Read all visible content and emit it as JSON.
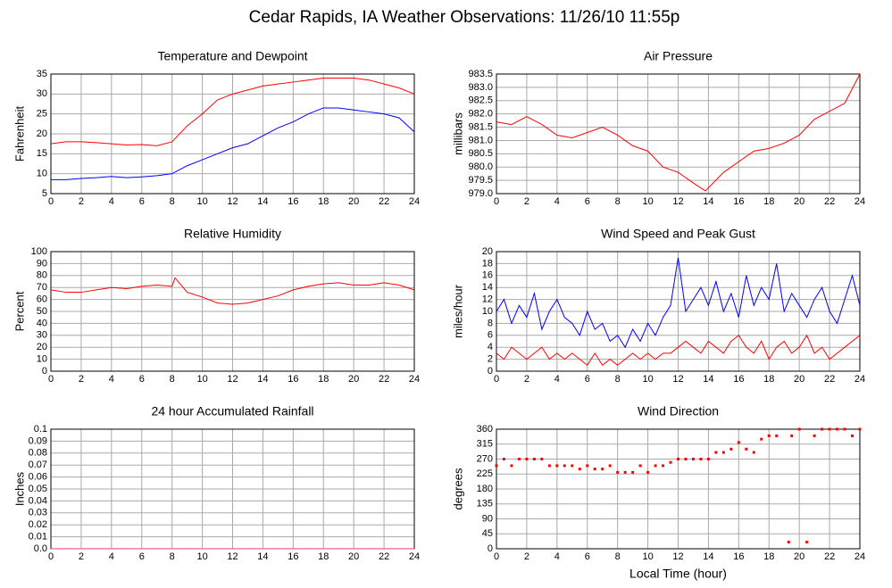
{
  "title": "Cedar Rapids, IA Weather Observations: 11/26/10 11:55p",
  "chart_data": [
    {
      "type": "line",
      "title": "Temperature and Dewpoint",
      "ylabel": "Fahrenheit",
      "xlim": [
        0,
        24
      ],
      "xticks": [
        0,
        2,
        4,
        6,
        8,
        10,
        12,
        14,
        16,
        18,
        20,
        22,
        24
      ],
      "ylim": [
        5,
        35
      ],
      "yticks": [
        5,
        10,
        15,
        20,
        25,
        30,
        35
      ],
      "grid": true,
      "x": [
        0,
        1,
        2,
        3,
        4,
        5,
        6,
        7,
        8,
        9,
        10,
        11,
        12,
        13,
        14,
        15,
        16,
        17,
        18,
        19,
        20,
        21,
        22,
        23,
        24
      ],
      "series": [
        {
          "color": "#ff0000",
          "values": [
            17.5,
            18,
            18,
            17.8,
            17.5,
            17.2,
            17.3,
            17,
            18,
            22,
            25,
            28.5,
            30,
            31,
            32,
            32.5,
            33,
            33.5,
            34,
            34,
            34,
            33.5,
            32.5,
            31.5,
            30
          ]
        },
        {
          "color": "#0000ff",
          "values": [
            8.5,
            8.5,
            8.8,
            9,
            9.3,
            9,
            9.2,
            9.5,
            10,
            12,
            13.5,
            15,
            16.5,
            17.5,
            19.5,
            21.5,
            23,
            25,
            26.5,
            26.5,
            26,
            25.5,
            25,
            24,
            20.5
          ]
        }
      ]
    },
    {
      "type": "line",
      "title": "Air Pressure",
      "ylabel": "millibars",
      "xlim": [
        0,
        24
      ],
      "xticks": [
        0,
        2,
        4,
        6,
        8,
        10,
        12,
        14,
        16,
        18,
        20,
        22,
        24
      ],
      "ylim": [
        979,
        983.5
      ],
      "yticks": [
        {
          "value": 979,
          "label": "979.0"
        },
        979.5,
        {
          "value": 980,
          "label": "980.0"
        },
        980.5,
        {
          "value": 981,
          "label": "981.0"
        },
        981.5,
        {
          "value": 982,
          "label": "982.0"
        },
        982.5,
        {
          "value": 983,
          "label": "983.0"
        },
        983.5
      ],
      "grid": true,
      "x": [
        0,
        1,
        2,
        3,
        4,
        5,
        6,
        7,
        8,
        9,
        10,
        11,
        12,
        13,
        13.8,
        15,
        16,
        17,
        18,
        19,
        20,
        21,
        22,
        23,
        24
      ],
      "series": [
        {
          "color": "#ff0000",
          "values": [
            981.7,
            981.6,
            981.9,
            981.6,
            981.2,
            981.1,
            981.3,
            981.5,
            981.2,
            980.8,
            980.6,
            980,
            979.8,
            979.4,
            979.1,
            979.8,
            980.2,
            980.6,
            980.7,
            980.9,
            981.2,
            981.8,
            982.1,
            982.4,
            983.5
          ]
        }
      ]
    },
    {
      "type": "line",
      "title": "Relative Humidity",
      "ylabel": "Percent",
      "xlim": [
        0,
        24
      ],
      "xticks": [
        0,
        2,
        4,
        6,
        8,
        10,
        12,
        14,
        16,
        18,
        20,
        22,
        24
      ],
      "ylim": [
        0,
        100
      ],
      "yticks": [
        0,
        10,
        20,
        30,
        40,
        50,
        60,
        70,
        80,
        90,
        100
      ],
      "grid": true,
      "x": [
        0,
        1,
        2,
        3,
        4,
        5,
        6,
        7,
        8,
        8.2,
        9,
        10,
        11,
        12,
        13,
        14,
        15,
        16,
        17,
        18,
        19,
        20,
        21,
        22,
        23,
        24
      ],
      "series": [
        {
          "color": "#ff0000",
          "values": [
            68,
            66,
            66,
            68,
            70,
            69,
            71,
            72,
            71,
            78,
            66,
            62,
            57,
            56,
            57,
            60,
            63,
            68,
            71,
            73,
            74,
            72,
            72,
            74,
            72,
            68
          ]
        }
      ]
    },
    {
      "type": "line",
      "title": "Wind Speed and Peak Gust",
      "ylabel": "miles/hour",
      "xlim": [
        0,
        24
      ],
      "xticks": [
        0,
        2,
        4,
        6,
        8,
        10,
        12,
        14,
        16,
        18,
        20,
        22,
        24
      ],
      "ylim": [
        0,
        20
      ],
      "yticks": [
        0,
        2,
        4,
        6,
        8,
        10,
        12,
        14,
        16,
        18,
        20
      ],
      "grid": true,
      "x": [
        0,
        0.5,
        1,
        1.5,
        2,
        2.5,
        3,
        3.5,
        4,
        4.5,
        5,
        5.5,
        6,
        6.5,
        7,
        7.5,
        8,
        8.5,
        9,
        9.5,
        10,
        10.5,
        11,
        11.5,
        12,
        12.5,
        13,
        13.5,
        14,
        14.5,
        15,
        15.5,
        16,
        16.5,
        17,
        17.5,
        18,
        18.5,
        19,
        19.5,
        20,
        20.5,
        21,
        21.5,
        22,
        22.5,
        23,
        23.5,
        24
      ],
      "series": [
        {
          "color": "#0000ff",
          "values": [
            10,
            12,
            8,
            11,
            9,
            13,
            7,
            10,
            12,
            9,
            8,
            6,
            10,
            7,
            8,
            5,
            6,
            4,
            7,
            5,
            8,
            6,
            9,
            11,
            19,
            10,
            12,
            14,
            11,
            15,
            10,
            13,
            9,
            16,
            11,
            14,
            12,
            18,
            10,
            13,
            11,
            9,
            12,
            14,
            10,
            8,
            12,
            16,
            11
          ]
        },
        {
          "color": "#ff0000",
          "values": [
            3,
            2,
            4,
            3,
            2,
            3,
            4,
            2,
            3,
            2,
            3,
            2,
            1,
            3,
            1,
            2,
            1,
            2,
            3,
            2,
            3,
            2,
            3,
            3,
            4,
            5,
            4,
            3,
            5,
            4,
            3,
            5,
            6,
            4,
            3,
            5,
            2,
            4,
            5,
            3,
            4,
            6,
            3,
            4,
            2,
            3,
            4,
            5,
            6
          ]
        }
      ]
    },
    {
      "type": "line",
      "title": "24 hour Accumulated Rainfall",
      "ylabel": "Inches",
      "xlim": [
        0,
        24
      ],
      "xticks": [
        0,
        2,
        4,
        6,
        8,
        10,
        12,
        14,
        16,
        18,
        20,
        22,
        24
      ],
      "ylim": [
        0,
        0.1
      ],
      "yticks": [
        {
          "value": 0,
          "label": "0.0"
        },
        0.01,
        0.02,
        0.03,
        0.04,
        0.05,
        0.06,
        0.07,
        0.08,
        0.09,
        0.1
      ],
      "grid": true,
      "x": [
        0,
        24
      ],
      "series": [
        {
          "color": "#ff3060",
          "values": [
            0,
            0
          ]
        }
      ]
    },
    {
      "type": "scatter",
      "title": "Wind Direction",
      "ylabel": "degrees",
      "xlabel": "Local Time (hour)",
      "xlim": [
        0,
        24
      ],
      "xticks": [
        0,
        2,
        4,
        6,
        8,
        10,
        12,
        14,
        16,
        18,
        20,
        22,
        24
      ],
      "ylim": [
        0,
        360
      ],
      "yticks": [
        0,
        45,
        90,
        135,
        180,
        225,
        270,
        315,
        360
      ],
      "grid": true,
      "color": "#ff0000",
      "x": [
        0,
        0.5,
        1,
        1.5,
        2,
        2.5,
        3,
        3.5,
        4,
        4.5,
        5,
        5.5,
        6,
        6.5,
        7,
        7.5,
        8,
        8.5,
        9,
        9.5,
        10,
        10.5,
        11,
        11.5,
        12,
        12.5,
        13,
        13.5,
        14,
        14.5,
        15,
        15.5,
        16,
        16.5,
        17,
        17.5,
        18,
        18.5,
        19.3,
        19.5,
        20,
        20.5,
        21,
        21.5,
        22,
        22.5,
        23,
        23.5,
        24
      ],
      "values": [
        250,
        270,
        250,
        270,
        270,
        270,
        270,
        250,
        250,
        250,
        250,
        240,
        250,
        240,
        240,
        250,
        230,
        230,
        230,
        250,
        230,
        250,
        250,
        260,
        270,
        270,
        270,
        270,
        270,
        290,
        290,
        300,
        320,
        300,
        290,
        330,
        340,
        340,
        20,
        340,
        360,
        20,
        340,
        360,
        360,
        360,
        360,
        340,
        360
      ]
    }
  ]
}
